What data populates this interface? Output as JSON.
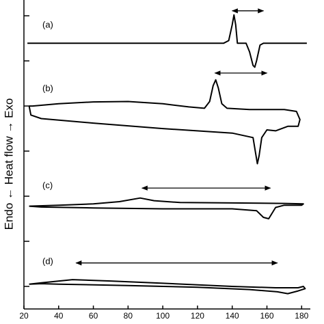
{
  "chart_data": {
    "type": "line",
    "ylabel": "Endo ← Heat flow → Exo",
    "xlim": [
      20,
      185
    ],
    "xticks": [
      20,
      40,
      60,
      80,
      100,
      120,
      140,
      160,
      180
    ],
    "ylim": [
      0,
      6.85
    ],
    "yticks": [
      0.5,
      1.5,
      2.5,
      3.5,
      4.5,
      5.5,
      6.5
    ],
    "color": "#000000",
    "series": [
      {
        "name": "(a)",
        "arrow": [
          140,
          158
        ],
        "arrow_y": 6.61,
        "x": [
          22,
          135,
          138,
          140,
          141,
          142,
          143,
          148,
          150,
          152,
          153,
          154,
          156,
          158,
          183
        ],
        "values": [
          5.89,
          5.89,
          5.95,
          6.3,
          6.52,
          6.3,
          5.89,
          5.89,
          5.7,
          5.4,
          5.36,
          5.5,
          5.85,
          5.89,
          5.89
        ]
      },
      {
        "name": "(b)",
        "arrow": [
          130,
          160
        ],
        "arrow_y": 5.23,
        "x": [
          23,
          25,
          40,
          60,
          80,
          100,
          115,
          124,
          127,
          129,
          130.5,
          132,
          134,
          137,
          150,
          170,
          177,
          179,
          178,
          172,
          165,
          160,
          157,
          155.5,
          154.5,
          153.5,
          152,
          140,
          100,
          60,
          30,
          24,
          23
        ],
        "values": [
          4.5,
          4.5,
          4.55,
          4.59,
          4.6,
          4.55,
          4.48,
          4.45,
          4.6,
          4.95,
          5.08,
          4.9,
          4.55,
          4.45,
          4.42,
          4.42,
          4.38,
          4.2,
          4.05,
          4.05,
          3.95,
          3.97,
          3.8,
          3.4,
          3.22,
          3.45,
          3.8,
          3.9,
          4.0,
          4.12,
          4.22,
          4.3,
          4.5
        ]
      },
      {
        "name": "(c)",
        "arrow": [
          88,
          162
        ],
        "arrow_y": 2.68,
        "x": [
          23,
          40,
          60,
          75,
          87,
          95,
          110,
          140,
          170,
          181,
          180,
          170,
          165,
          161,
          158,
          154,
          140,
          100,
          60,
          30,
          23
        ],
        "values": [
          2.28,
          2.3,
          2.33,
          2.38,
          2.46,
          2.4,
          2.36,
          2.35,
          2.34,
          2.33,
          2.3,
          2.3,
          2.25,
          2.0,
          2.03,
          2.18,
          2.22,
          2.22,
          2.24,
          2.26,
          2.28
        ]
      },
      {
        "name": "(d)",
        "arrow": [
          50,
          166
        ],
        "arrow_y": 1.02,
        "x": [
          23,
          30,
          48,
          70,
          100,
          140,
          165,
          178,
          181,
          182,
          178,
          172,
          166,
          150,
          120,
          80,
          40,
          30,
          23
        ],
        "values": [
          0.55,
          0.58,
          0.65,
          0.62,
          0.57,
          0.5,
          0.47,
          0.47,
          0.5,
          0.45,
          0.4,
          0.34,
          0.38,
          0.43,
          0.48,
          0.52,
          0.55,
          0.56,
          0.55
        ]
      }
    ]
  }
}
